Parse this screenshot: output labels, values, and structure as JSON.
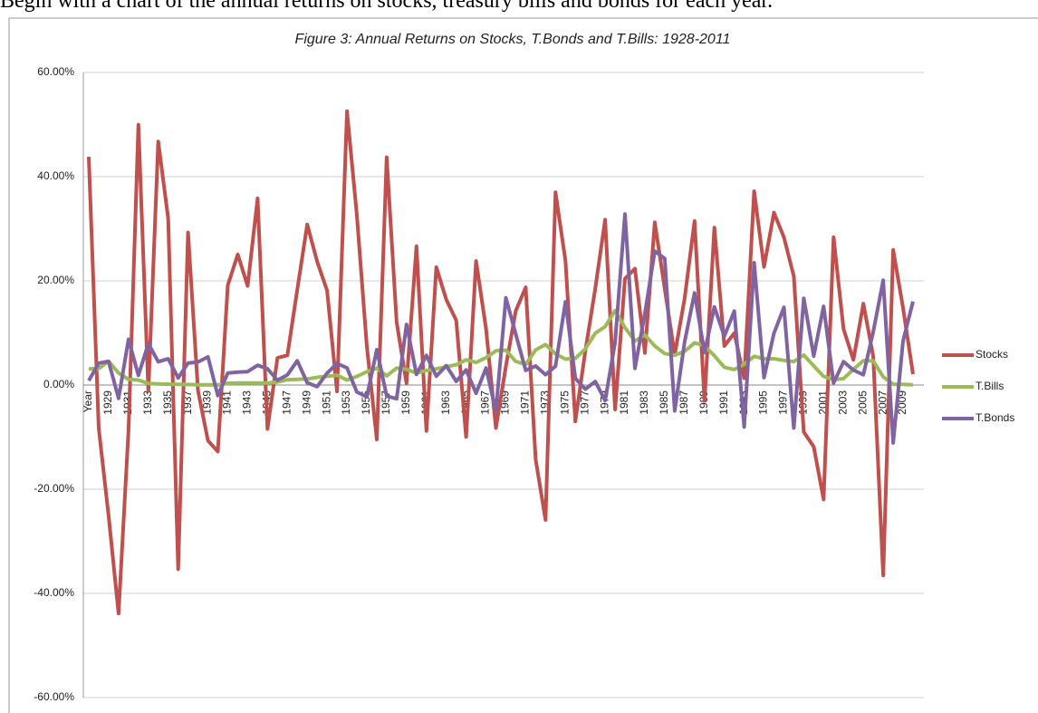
{
  "caption": "Begin with a chart of the annual returns on stocks, treasury bills and bonds for each year.",
  "chart_data": {
    "type": "line",
    "title": "Figure 3: Annual Returns on Stocks, T.Bonds and T.Bills: 1928-2011",
    "categories": [
      "Year",
      null,
      "1929",
      null,
      "1931",
      null,
      "1933",
      null,
      "1935",
      null,
      "1937",
      null,
      "1939",
      null,
      "1941",
      null,
      "1943",
      null,
      "1945",
      null,
      "1947",
      null,
      "1949",
      null,
      "1951",
      null,
      "1953",
      null,
      "1955",
      null,
      "1957",
      null,
      "1959",
      null,
      "1961",
      null,
      "1963",
      null,
      "1965",
      null,
      "1967",
      null,
      "1969",
      null,
      "1971",
      null,
      "1973",
      null,
      "1975",
      null,
      "1977",
      null,
      "1979",
      null,
      "1981",
      null,
      "1983",
      null,
      "1985",
      null,
      "1987",
      null,
      "1989",
      null,
      "1991",
      null,
      "1993",
      null,
      "1995",
      null,
      "1997",
      null,
      "1999",
      null,
      "2001",
      null,
      "2003",
      null,
      "2005",
      null,
      "2007",
      null,
      "2009",
      null
    ],
    "series": [
      {
        "name": "Stocks",
        "color": "#c0504d",
        "values": [
          43.81,
          -8.3,
          -25.12,
          -43.84,
          -8.64,
          49.98,
          -1.19,
          46.74,
          31.94,
          -35.34,
          29.28,
          -1.1,
          -10.67,
          -12.77,
          19.17,
          25.06,
          19.03,
          35.82,
          -8.43,
          5.2,
          5.7,
          18.3,
          30.81,
          23.68,
          18.15,
          -1.21,
          52.56,
          32.6,
          7.44,
          -10.46,
          43.72,
          12.06,
          0.34,
          26.64,
          -8.81,
          22.61,
          16.42,
          12.4,
          -9.97,
          23.8,
          10.81,
          -8.24,
          3.56,
          14.22,
          18.76,
          -14.31,
          -25.9,
          37.0,
          23.83,
          -6.98,
          6.51,
          18.52,
          31.74,
          -4.7,
          20.42,
          22.34,
          6.15,
          31.24,
          18.49,
          5.81,
          16.54,
          31.48,
          -3.06,
          30.23,
          7.49,
          9.97,
          1.33,
          37.2,
          22.68,
          33.1,
          28.34,
          20.89,
          -9.03,
          -11.85,
          -21.97,
          28.36,
          10.74,
          4.83,
          15.61,
          5.48,
          -36.55,
          25.94,
          14.82,
          2.1
        ]
      },
      {
        "name": "T.Bills",
        "color": "#9bbb59",
        "values": [
          3.08,
          3.16,
          4.55,
          2.31,
          1.07,
          0.96,
          0.3,
          0.23,
          0.15,
          0.12,
          0.11,
          0.03,
          0.04,
          0.02,
          0.33,
          0.38,
          0.38,
          0.38,
          0.38,
          0.57,
          1.02,
          1.1,
          1.17,
          1.48,
          1.67,
          1.89,
          0.96,
          1.66,
          2.56,
          3.23,
          1.78,
          3.26,
          3.05,
          2.27,
          2.78,
          3.11,
          3.51,
          3.9,
          4.84,
          4.33,
          5.26,
          6.56,
          6.69,
          4.54,
          3.95,
          6.73,
          7.78,
          5.99,
          4.97,
          5.13,
          6.93,
          9.94,
          11.22,
          14.3,
          11.01,
          8.45,
          9.61,
          7.49,
          6.04,
          5.72,
          6.45,
          8.11,
          7.55,
          5.61,
          3.41,
          2.98,
          3.99,
          5.52,
          5.02,
          5.05,
          4.73,
          4.51,
          5.76,
          3.67,
          1.66,
          1.03,
          1.23,
          3.01,
          4.68,
          4.64,
          1.59,
          0.14,
          0.13,
          0.03
        ]
      },
      {
        "name": "T.Bonds",
        "color": "#8064a2",
        "values": [
          0.84,
          4.2,
          4.54,
          -2.56,
          8.79,
          1.86,
          7.96,
          4.47,
          5.02,
          1.38,
          4.21,
          4.41,
          5.4,
          -2.02,
          2.29,
          2.49,
          2.58,
          3.8,
          3.13,
          0.92,
          1.95,
          4.66,
          0.43,
          -0.3,
          2.27,
          4.14,
          3.29,
          -1.34,
          -2.26,
          6.8,
          -2.1,
          -2.65,
          11.64,
          2.06,
          5.69,
          1.68,
          3.73,
          0.72,
          2.91,
          -1.58,
          3.27,
          -5.01,
          16.75,
          9.79,
          2.82,
          3.66,
          1.99,
          3.61,
          15.98,
          1.29,
          -0.78,
          0.67,
          -2.99,
          8.2,
          32.81,
          3.2,
          13.73,
          25.71,
          24.28,
          -4.96,
          8.22,
          17.69,
          6.24,
          15.0,
          9.36,
          14.21,
          -8.04,
          23.48,
          1.43,
          9.94,
          14.92,
          -8.25,
          16.66,
          5.57,
          15.12,
          0.38,
          4.49,
          2.87,
          1.96,
          10.21,
          20.1,
          -11.12,
          8.46,
          16.04
        ]
      }
    ],
    "ylim": [
      -60,
      60
    ],
    "yticks": [
      {
        "value": -60,
        "label": "-60.00%"
      },
      {
        "value": -40,
        "label": "-40.00%"
      },
      {
        "value": -20,
        "label": "-20.00%"
      },
      {
        "value": 0,
        "label": "0.00%"
      },
      {
        "value": 20,
        "label": "20.00%"
      },
      {
        "value": 40,
        "label": "40.00%"
      },
      {
        "value": 60,
        "label": "60.00%"
      }
    ],
    "grid": true,
    "legend": "right"
  }
}
